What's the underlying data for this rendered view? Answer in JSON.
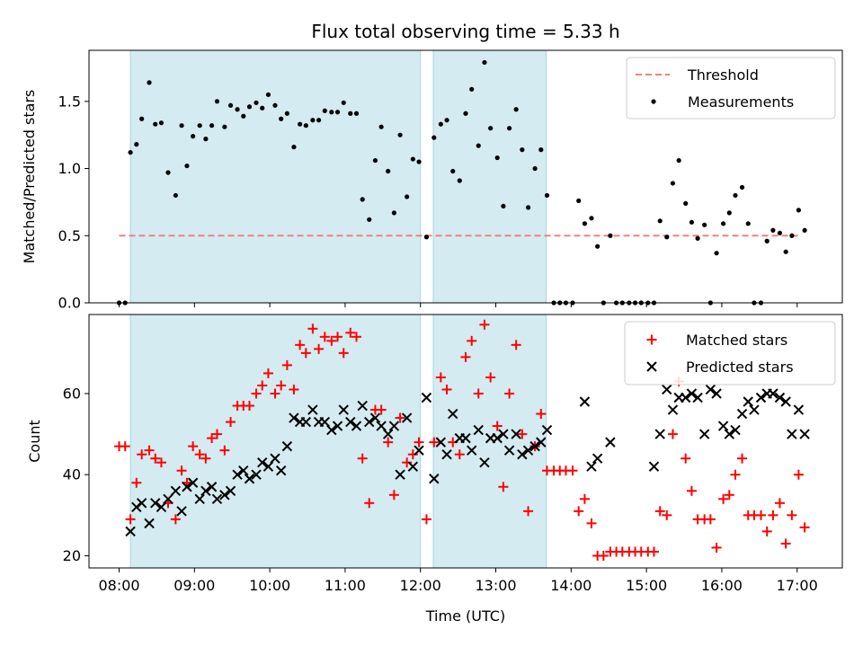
{
  "chart_data": {
    "type": "scatter",
    "title": "Flux total observing time = 5.33 h",
    "xlabel": "Time (UTC)",
    "x_unit": "hours UTC",
    "xlim": [
      7.6,
      17.6
    ],
    "xticks": [
      8,
      9,
      10,
      11,
      12,
      13,
      14,
      15,
      16,
      17
    ],
    "xtick_labels": [
      "08:00",
      "09:00",
      "10:00",
      "11:00",
      "12:00",
      "13:00",
      "14:00",
      "15:00",
      "16:00",
      "17:00"
    ],
    "shaded_intervals": [
      [
        8.15,
        12.0
      ],
      [
        12.17,
        13.67
      ]
    ],
    "shade_color": "#d4ebf1",
    "top": {
      "ylabel": "Matched/Predicted stars",
      "ylim": [
        0,
        1.88
      ],
      "yticks": [
        0,
        0.5,
        1.0,
        1.5
      ],
      "ytick_labels": [
        "0.0",
        "0.5",
        "1.0",
        "1.5"
      ],
      "legend_position": "top-right",
      "threshold": {
        "name": "Threshold",
        "value": 0.5,
        "x_range": [
          8.0,
          17.05
        ],
        "color": "#f08080"
      },
      "measurements": {
        "name": "Measurements",
        "color": "#000000",
        "x": [
          8.0,
          8.08,
          8.15,
          8.23,
          8.3,
          8.4,
          8.48,
          8.56,
          8.65,
          8.75,
          8.83,
          8.9,
          8.98,
          9.07,
          9.15,
          9.23,
          9.3,
          9.4,
          9.48,
          9.57,
          9.65,
          9.73,
          9.82,
          9.9,
          9.98,
          10.07,
          10.15,
          10.23,
          10.32,
          10.4,
          10.48,
          10.57,
          10.65,
          10.73,
          10.82,
          10.9,
          10.98,
          11.07,
          11.15,
          11.23,
          11.32,
          11.4,
          11.48,
          11.57,
          11.65,
          11.73,
          11.82,
          11.9,
          11.98,
          12.08,
          12.18,
          12.27,
          12.35,
          12.43,
          12.52,
          12.6,
          12.68,
          12.77,
          12.85,
          12.93,
          13.02,
          13.1,
          13.18,
          13.27,
          13.35,
          13.43,
          13.52,
          13.6,
          13.68,
          13.77,
          13.85,
          13.93,
          14.02,
          14.1,
          14.18,
          14.27,
          14.35,
          14.43,
          14.52,
          14.6,
          14.68,
          14.77,
          14.85,
          14.93,
          15.02,
          15.1,
          15.18,
          15.27,
          15.35,
          15.43,
          15.52,
          15.6,
          15.68,
          15.77,
          15.85,
          15.93,
          16.02,
          16.1,
          16.18,
          16.27,
          16.35,
          16.43,
          16.52,
          16.6,
          16.68,
          16.77,
          16.85,
          16.93,
          17.02,
          17.1
        ],
        "y": [
          0,
          0,
          1.12,
          1.18,
          1.37,
          1.64,
          1.33,
          1.34,
          0.97,
          0.8,
          1.32,
          1.02,
          1.24,
          1.32,
          1.22,
          1.32,
          1.5,
          1.31,
          1.47,
          1.44,
          1.39,
          1.46,
          1.49,
          1.45,
          1.55,
          1.47,
          1.37,
          1.41,
          1.16,
          1.33,
          1.32,
          1.36,
          1.36,
          1.43,
          1.42,
          1.42,
          1.49,
          1.41,
          1.41,
          0.77,
          0.62,
          1.06,
          1.31,
          0.98,
          0.67,
          1.25,
          0.79,
          1.07,
          1.05,
          0.49,
          1.23,
          1.33,
          1.36,
          0.98,
          0.91,
          1.41,
          1.59,
          1.17,
          1.79,
          1.3,
          1.08,
          0.72,
          1.3,
          1.44,
          1.14,
          0.71,
          1.0,
          1.14,
          0.8,
          0,
          0,
          0,
          0,
          0.76,
          0.59,
          0.63,
          0.42,
          0,
          0.5,
          0,
          0,
          0,
          0,
          0,
          0,
          0,
          0.61,
          0.49,
          0.89,
          1.06,
          0.74,
          0.6,
          0.48,
          0.58,
          0,
          0.37,
          0.59,
          0.67,
          0.8,
          0.86,
          0.59,
          0,
          0,
          0.46,
          0.54,
          0.52,
          0.38,
          0.5,
          0.69,
          0.54
        ]
      }
    },
    "bottom": {
      "ylabel": "Count",
      "ylim": [
        17,
        79.5
      ],
      "yticks": [
        20,
        40,
        60
      ],
      "ytick_labels": [
        "20",
        "40",
        "60"
      ],
      "legend_position": "top-right",
      "series": [
        {
          "name": "Matched stars",
          "marker": "plus",
          "color": "#ff0000",
          "x": [
            8.0,
            8.08,
            8.15,
            8.23,
            8.3,
            8.4,
            8.48,
            8.56,
            8.65,
            8.75,
            8.83,
            8.9,
            8.98,
            9.07,
            9.15,
            9.23,
            9.3,
            9.4,
            9.48,
            9.57,
            9.65,
            9.73,
            9.82,
            9.9,
            9.98,
            10.07,
            10.15,
            10.23,
            10.32,
            10.4,
            10.48,
            10.57,
            10.65,
            10.73,
            10.82,
            10.9,
            10.98,
            11.07,
            11.15,
            11.23,
            11.32,
            11.4,
            11.48,
            11.57,
            11.65,
            11.73,
            11.82,
            11.9,
            11.98,
            12.08,
            12.18,
            12.27,
            12.35,
            12.43,
            12.52,
            12.6,
            12.68,
            12.77,
            12.85,
            12.93,
            13.02,
            13.1,
            13.18,
            13.27,
            13.35,
            13.43,
            13.52,
            13.6,
            13.68,
            13.77,
            13.85,
            13.93,
            14.02,
            14.1,
            14.18,
            14.27,
            14.35,
            14.43,
            14.52,
            14.6,
            14.68,
            14.77,
            14.85,
            14.93,
            15.02,
            15.1,
            15.18,
            15.27,
            15.35,
            15.43,
            15.52,
            15.6,
            15.68,
            15.77,
            15.85,
            15.93,
            16.02,
            16.1,
            16.18,
            16.27,
            16.35,
            16.43,
            16.52,
            16.6,
            16.68,
            16.77,
            16.85,
            16.93,
            17.02,
            17.1
          ],
          "y": [
            47,
            47,
            29,
            38,
            45,
            46,
            44,
            43,
            33,
            29,
            41,
            38,
            47,
            45,
            44,
            49,
            50,
            46,
            53,
            57,
            57,
            57,
            60,
            62,
            65,
            60,
            62,
            67,
            61,
            72,
            70,
            76,
            71,
            74,
            73,
            74,
            70,
            75,
            74,
            44,
            33,
            56,
            56,
            48,
            35,
            54,
            43,
            45,
            48,
            29,
            48,
            64,
            61,
            48,
            45,
            69,
            73,
            60,
            77,
            64,
            52,
            37,
            60,
            72,
            50,
            31,
            47,
            55,
            41,
            41,
            41,
            41,
            41,
            31,
            34,
            28,
            20,
            20,
            21,
            21,
            21,
            21,
            21,
            21,
            21,
            21,
            31,
            30,
            50,
            63,
            44,
            36,
            29,
            29,
            29,
            22,
            34,
            35,
            40,
            44,
            30,
            30,
            30,
            26,
            30,
            33,
            23,
            30,
            40,
            27
          ]
        },
        {
          "name": "Predicted stars",
          "marker": "x",
          "color": "#000000",
          "x": [
            8.15,
            8.23,
            8.3,
            8.4,
            8.48,
            8.56,
            8.65,
            8.75,
            8.83,
            8.9,
            8.98,
            9.07,
            9.15,
            9.23,
            9.3,
            9.4,
            9.48,
            9.57,
            9.65,
            9.73,
            9.82,
            9.9,
            9.98,
            10.07,
            10.15,
            10.23,
            10.32,
            10.4,
            10.48,
            10.57,
            10.65,
            10.73,
            10.82,
            10.9,
            10.98,
            11.07,
            11.15,
            11.23,
            11.32,
            11.4,
            11.48,
            11.57,
            11.65,
            11.73,
            11.82,
            11.9,
            11.98,
            12.08,
            12.18,
            12.27,
            12.35,
            12.43,
            12.52,
            12.6,
            12.68,
            12.77,
            12.85,
            12.93,
            13.02,
            13.1,
            13.18,
            13.27,
            13.35,
            13.43,
            13.52,
            13.6,
            13.68,
            14.18,
            14.27,
            14.35,
            14.52,
            15.1,
            15.18,
            15.27,
            15.35,
            15.43,
            15.52,
            15.6,
            15.68,
            15.77,
            15.85,
            15.93,
            16.02,
            16.1,
            16.18,
            16.27,
            16.35,
            16.43,
            16.52,
            16.6,
            16.68,
            16.77,
            16.85,
            16.93,
            17.02,
            17.1
          ],
          "y": [
            26,
            32,
            33,
            28,
            33,
            32,
            34,
            36,
            31,
            37,
            38,
            34,
            36,
            37,
            34,
            35,
            36,
            40,
            41,
            39,
            40,
            43,
            42,
            44,
            41,
            47,
            54,
            53,
            53,
            56,
            53,
            53,
            51,
            52,
            56,
            53,
            52,
            57,
            53,
            54,
            52,
            50,
            52,
            40,
            54,
            42,
            46,
            59,
            39,
            48,
            45,
            55,
            49,
            49,
            46,
            51,
            43,
            49,
            49,
            50,
            46,
            50,
            45,
            46,
            47,
            48,
            51,
            58,
            42,
            44,
            48,
            42,
            50,
            61,
            56,
            59,
            59,
            60,
            59,
            50,
            61,
            60,
            52,
            50,
            51,
            55,
            58,
            56,
            59,
            60,
            60,
            59,
            58,
            50,
            56,
            50
          ]
        }
      ]
    }
  }
}
